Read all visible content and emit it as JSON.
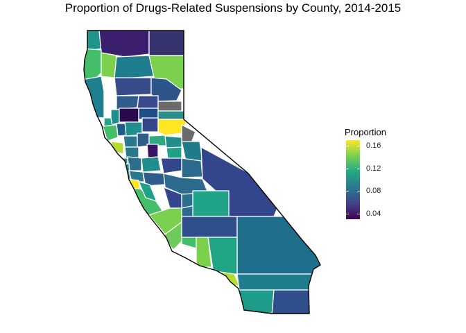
{
  "title": "Proportion of Drugs-Related Suspensions by County, 2014-2015",
  "legend": {
    "title": "Proportion",
    "ticks": [
      "0.16",
      "0.12",
      "0.08",
      "0.04"
    ],
    "tick_values": [
      0.16,
      0.12,
      0.08,
      0.04
    ],
    "range": [
      0.03,
      0.17
    ],
    "colors": [
      "#FDE725",
      "#7AD151",
      "#22A884",
      "#2A788E",
      "#414487",
      "#440154"
    ]
  },
  "map": {
    "missing_color": "#6B6B6B",
    "boundary_color": "#ffffff",
    "outline_color": "#000000"
  }
}
